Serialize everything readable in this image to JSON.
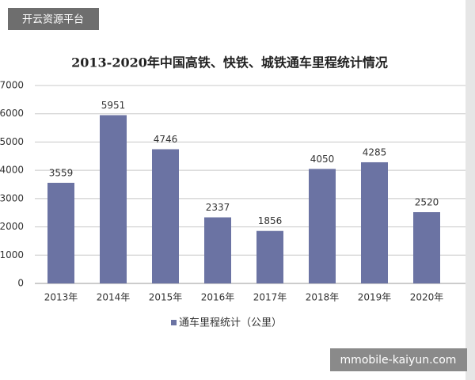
{
  "chart_data": {
    "type": "bar",
    "title": "2013-2020年中国高铁、快铁、城铁通车里程统计情况",
    "categories": [
      "2013年",
      "2014年",
      "2015年",
      "2016年",
      "2017年",
      "2018年",
      "2019年",
      "2020年"
    ],
    "series": [
      {
        "name": "通车里程统计（公里）",
        "color": "#6b73a3",
        "values": [
          3559,
          5951,
          4746,
          2337,
          1856,
          4050,
          4285,
          2520
        ]
      }
    ],
    "ylim": [
      0,
      7000
    ],
    "yticks": [
      0,
      1000,
      2000,
      3000,
      4000,
      5000,
      6000,
      7000
    ],
    "grid": true,
    "legend": "bottom"
  },
  "watermark_top": "开云资源平台",
  "watermark_bottom": "mmobile-kaiyun.com"
}
